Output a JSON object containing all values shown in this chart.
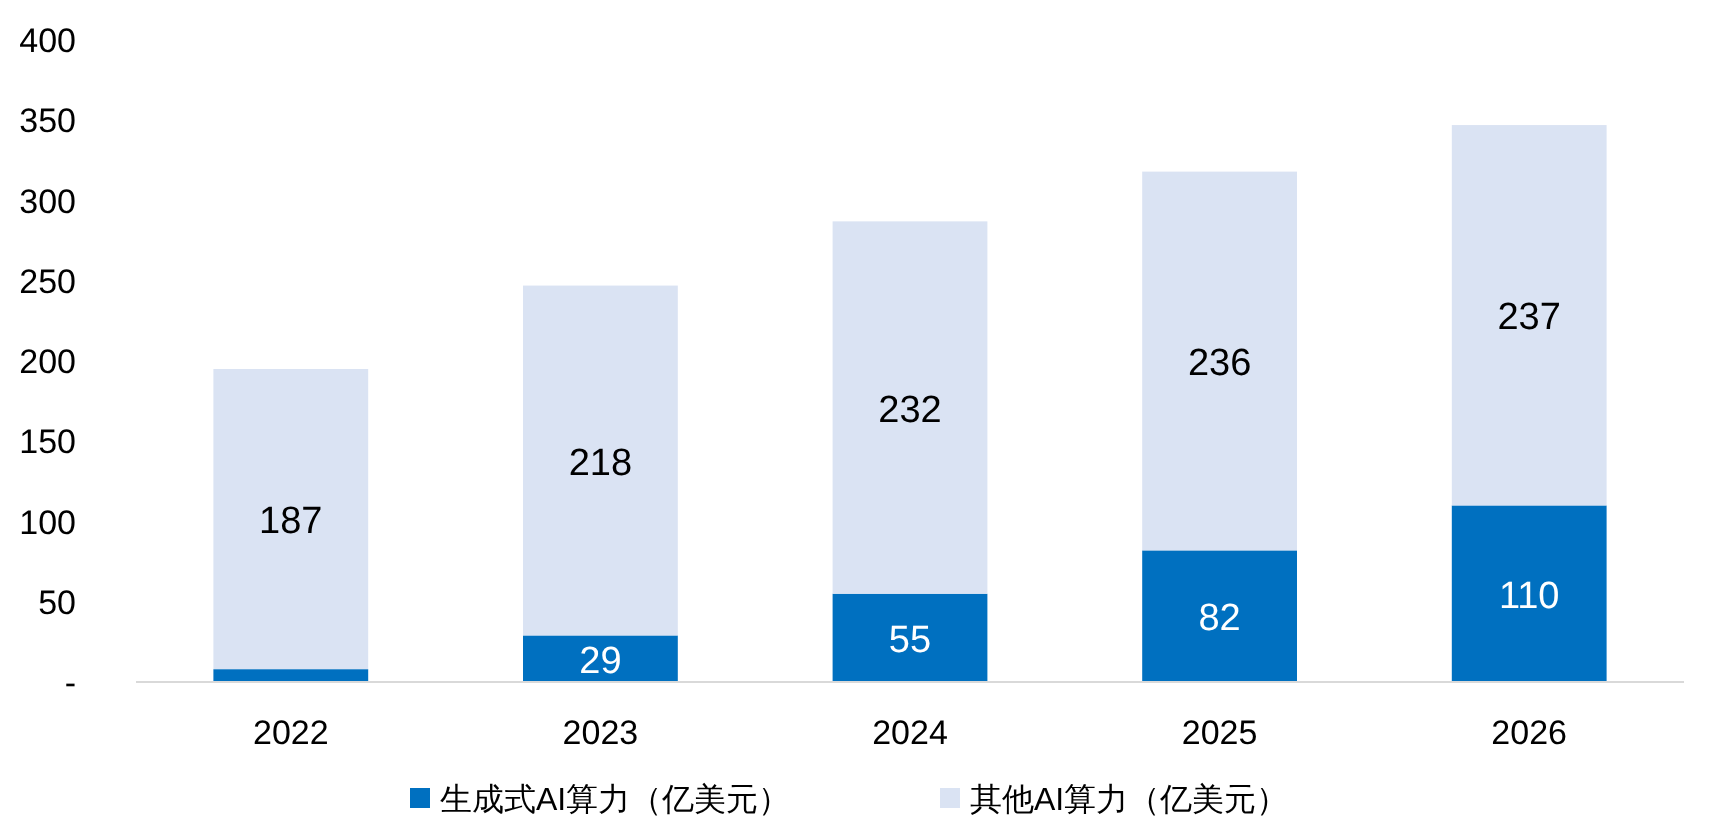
{
  "chart_data": {
    "type": "bar",
    "stacked": true,
    "categories": [
      "2022",
      "2023",
      "2024",
      "2025",
      "2026"
    ],
    "series": [
      {
        "name": "生成式AI算力（亿美元）",
        "color": "#0070c0",
        "values": [
          8,
          29,
          55,
          82,
          110
        ],
        "value_labels": [
          null,
          "29",
          "55",
          "82",
          "110"
        ]
      },
      {
        "name": "其他AI算力（亿美元）",
        "color": "#dae3f3",
        "values": [
          187,
          218,
          232,
          236,
          237
        ],
        "value_labels": [
          "187",
          "218",
          "232",
          "236",
          "237"
        ]
      }
    ],
    "ylim": [
      0,
      400
    ],
    "yticks": [
      {
        "value": 0,
        "label": "-"
      },
      50,
      100,
      150,
      200,
      250,
      300,
      350,
      400
    ],
    "legend": "bottom"
  }
}
